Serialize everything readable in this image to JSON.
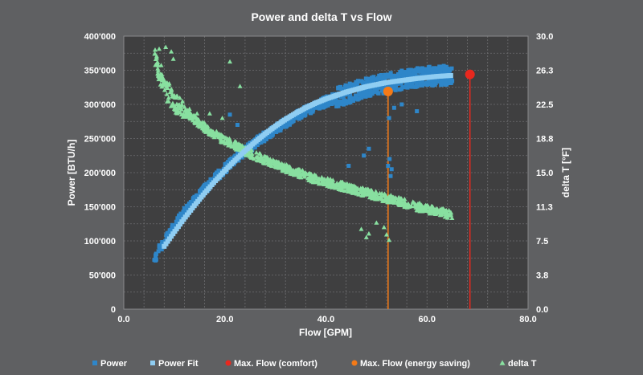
{
  "chart_data": {
    "type": "scatter",
    "title": "Power and  delta T vs Flow",
    "xlabel": "Flow  [GPM]",
    "ylabel": "Power  [BTU/h]",
    "y2label": "delta T  [°F]",
    "xlim": [
      0,
      80
    ],
    "ylim": [
      0,
      400000
    ],
    "y2lim": [
      0,
      30
    ],
    "x_ticks": [
      "0.0",
      "20.0",
      "40.0",
      "60.0",
      "80.0"
    ],
    "y_ticks": [
      "0",
      "50'000",
      "100'000",
      "150'000",
      "200'000",
      "250'000",
      "300'000",
      "350'000",
      "400'000"
    ],
    "y2_ticks": [
      "0.0",
      "3.8",
      "7.5",
      "11.3",
      "15.0",
      "18.8",
      "22.5",
      "26.3",
      "30.0"
    ],
    "grid": true,
    "legend_position": "bottom",
    "colors": {
      "power": "#2e86c9",
      "power_fit": "#8fcdf2",
      "max_comfort": "#e8281e",
      "max_energy": "#f47a17",
      "delta_t": "#88e0a0"
    },
    "series": [
      {
        "name": "Power",
        "marker": "square",
        "axis": "left",
        "values_description_free": true,
        "x": [
          6,
          7,
          8,
          9,
          10,
          11,
          12,
          13,
          14,
          15,
          16,
          17,
          18,
          19,
          20,
          21,
          22,
          23,
          24,
          25,
          26,
          27,
          28,
          30,
          32,
          34,
          36,
          38,
          40,
          42,
          44,
          46,
          48,
          50,
          52,
          54,
          56,
          58,
          60,
          62,
          64,
          65
        ],
        "y": [
          72000,
          88000,
          98000,
          110000,
          122000,
          132000,
          142000,
          150000,
          158000,
          167000,
          175000,
          183000,
          191000,
          198000,
          205000,
          212000,
          219000,
          225000,
          231000,
          237000,
          243000,
          249000,
          254000,
          264000,
          273000,
          282000,
          290000,
          297000,
          304000,
          310000,
          315000,
          320000,
          324000,
          328000,
          331000,
          334000,
          337000,
          339000,
          341000,
          342000,
          343000,
          344000
        ]
      },
      {
        "name": "Power Fit",
        "marker": "square",
        "axis": "left",
        "x": [
          8,
          10,
          12,
          14,
          16,
          18,
          20,
          22,
          24,
          26,
          28,
          30,
          32,
          34,
          36,
          38,
          40,
          42,
          44,
          46,
          48,
          50,
          52,
          54,
          56,
          58,
          60,
          62,
          64,
          65
        ],
        "y": [
          92000,
          113000,
          133000,
          152000,
          170000,
          187000,
          203000,
          218000,
          232000,
          245000,
          257000,
          268000,
          278000,
          287000,
          295000,
          302000,
          308000,
          313000,
          318000,
          322000,
          326000,
          329000,
          332000,
          334000,
          336000,
          338000,
          339500,
          341000,
          342000,
          342500
        ]
      },
      {
        "name": "Max. Flow (comfort)",
        "marker": "circle",
        "axis": "left",
        "x": [
          68.5
        ],
        "y": [
          344000
        ]
      },
      {
        "name": "Max. Flow (energy saving)",
        "marker": "circle",
        "axis": "left",
        "x": [
          52.3
        ],
        "y": [
          319000
        ]
      },
      {
        "name": "delta T",
        "marker": "triangle",
        "axis": "right",
        "x": [
          6,
          6.5,
          7,
          8,
          9,
          10,
          12,
          14,
          16,
          18,
          20,
          22,
          24,
          26,
          28,
          30,
          32,
          34,
          36,
          38,
          40,
          42,
          44,
          46,
          48,
          50,
          52,
          54,
          56,
          58,
          60,
          62,
          64,
          65
        ],
        "y": [
          28.3,
          27.5,
          26.0,
          24.2,
          23.5,
          22.8,
          21.8,
          20.9,
          20.0,
          19.2,
          18.6,
          18.0,
          17.4,
          16.9,
          16.4,
          15.9,
          15.5,
          15.1,
          14.7,
          14.3,
          14.0,
          13.7,
          13.4,
          13.1,
          12.8,
          12.5,
          12.2,
          11.9,
          11.6,
          11.3,
          11.0,
          10.8,
          10.5,
          10.3
        ]
      }
    ],
    "reference_lines": [
      {
        "name": "Max. Flow (comfort)",
        "x": 68.5,
        "color": "#e8281e"
      },
      {
        "name": "Max. Flow (energy saving)",
        "x": 52.3,
        "color": "#f47a17"
      }
    ]
  }
}
